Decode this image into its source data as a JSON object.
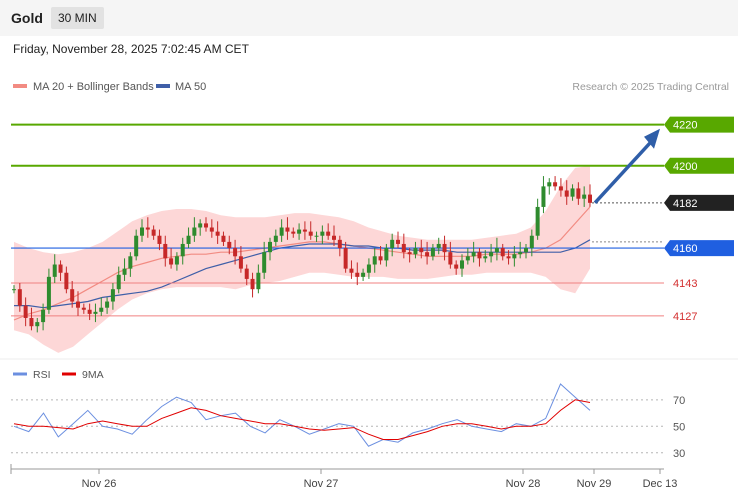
{
  "header": {
    "symbol": "Gold",
    "timeframe": "30 MIN",
    "datetime": "Friday, November 28, 2025 7:02:45 AM CET"
  },
  "legend": {
    "ma20": "MA 20 + Bollinger Bands",
    "ma50": "MA 50",
    "copyright": "Research © 2025 Trading Central"
  },
  "rsi_legend": {
    "rsi": "RSI",
    "ma9": "9MA"
  },
  "colors": {
    "up": "#2e8b2e",
    "down": "#c62828",
    "band": "#fdd7d7",
    "ma20": "#f28b82",
    "ma50": "#3f5fa8",
    "green_level": "#58a800",
    "blue_level": "#1f5fe0",
    "red_level": "#d32f2f",
    "rsi": "#6b8fe0",
    "ma9": "#e00000",
    "arrow": "#2f5ea8"
  },
  "chart_data": [
    {
      "type": "candlestick",
      "title": "Gold",
      "timeframe": "30 MIN",
      "ylim": [
        4108,
        4232
      ],
      "x_ticks": [
        "Nov 26",
        "Nov 27",
        "Nov 28",
        "Nov 29",
        "Dec 13"
      ],
      "levels": [
        {
          "label": "4220",
          "value": 4220,
          "style": "resistance"
        },
        {
          "label": "4200",
          "value": 4200,
          "style": "resistance"
        },
        {
          "label": "4182",
          "value": 4182,
          "style": "last"
        },
        {
          "label": "4160",
          "value": 4160,
          "style": "support"
        },
        {
          "label": "4143",
          "value": 4143,
          "style": "support"
        },
        {
          "label": "4127",
          "value": 4127,
          "style": "support"
        }
      ],
      "projection": {
        "from": 4182,
        "to": 4218
      },
      "series": [
        {
          "name": "MA 20 + Bollinger Bands",
          "values": [
            4125,
            4128,
            4130,
            4133,
            4136,
            4140,
            4144,
            4148,
            4151,
            4153,
            4155,
            4156,
            4157,
            4157,
            4158,
            4158,
            4159,
            4160,
            4161,
            4162,
            4163,
            4163,
            4162,
            4161,
            4160,
            4159,
            4158,
            4157,
            4156,
            4156,
            4156,
            4156,
            4157,
            4157,
            4157,
            4158,
            4160,
            4164,
            4172,
            4180
          ]
        },
        {
          "name": "MA 50",
          "values": [
            4132,
            4132,
            4131,
            4132,
            4133,
            4134,
            4136,
            4137,
            4138,
            4139,
            4141,
            4144,
            4147,
            4150,
            4152,
            4154,
            4156,
            4158,
            4160,
            4161,
            4162,
            4162,
            4162,
            4161,
            4161,
            4160,
            4160,
            4159,
            4159,
            4159,
            4158,
            4158,
            4158,
            4158,
            4158,
            4158,
            4158,
            4158,
            4160,
            4164
          ]
        }
      ],
      "bollinger_upper": [
        4163,
        4160,
        4158,
        4157,
        4158,
        4160,
        4163,
        4168,
        4173,
        4176,
        4178,
        4179,
        4179,
        4178,
        4176,
        4175,
        4175,
        4175,
        4176,
        4177,
        4177,
        4176,
        4175,
        4173,
        4170,
        4168,
        4166,
        4165,
        4164,
        4164,
        4164,
        4164,
        4165,
        4166,
        4167,
        4170,
        4178,
        4190,
        4199,
        4200
      ],
      "bollinger_lower": [
        4120,
        4118,
        4113,
        4109,
        4112,
        4118,
        4124,
        4130,
        4135,
        4138,
        4140,
        4141,
        4141,
        4141,
        4141,
        4140,
        4142,
        4143,
        4144,
        4146,
        4148,
        4148,
        4147,
        4146,
        4146,
        4146,
        4145,
        4145,
        4145,
        4146,
        4147,
        4147,
        4148,
        4148,
        4148,
        4148,
        4146,
        4140,
        4138,
        4150
      ]
    },
    {
      "type": "line",
      "title": "RSI",
      "ylim": [
        20,
        85
      ],
      "y_ticks": [
        30,
        50,
        70
      ],
      "series": [
        {
          "name": "RSI",
          "values": [
            50,
            46,
            60,
            42,
            52,
            62,
            50,
            48,
            44,
            55,
            65,
            72,
            68,
            55,
            58,
            60,
            50,
            45,
            55,
            50,
            44,
            48,
            52,
            50,
            35,
            40,
            38,
            45,
            48,
            52,
            55,
            50,
            48,
            46,
            52,
            50,
            56,
            82,
            72,
            62
          ]
        },
        {
          "name": "9MA",
          "values": [
            52,
            50,
            50,
            49,
            48,
            52,
            54,
            52,
            50,
            50,
            56,
            60,
            64,
            62,
            58,
            56,
            54,
            52,
            52,
            50,
            48,
            47,
            48,
            49,
            44,
            40,
            40,
            43,
            46,
            50,
            52,
            52,
            50,
            48,
            50,
            50,
            52,
            62,
            70,
            68
          ]
        }
      ]
    }
  ]
}
